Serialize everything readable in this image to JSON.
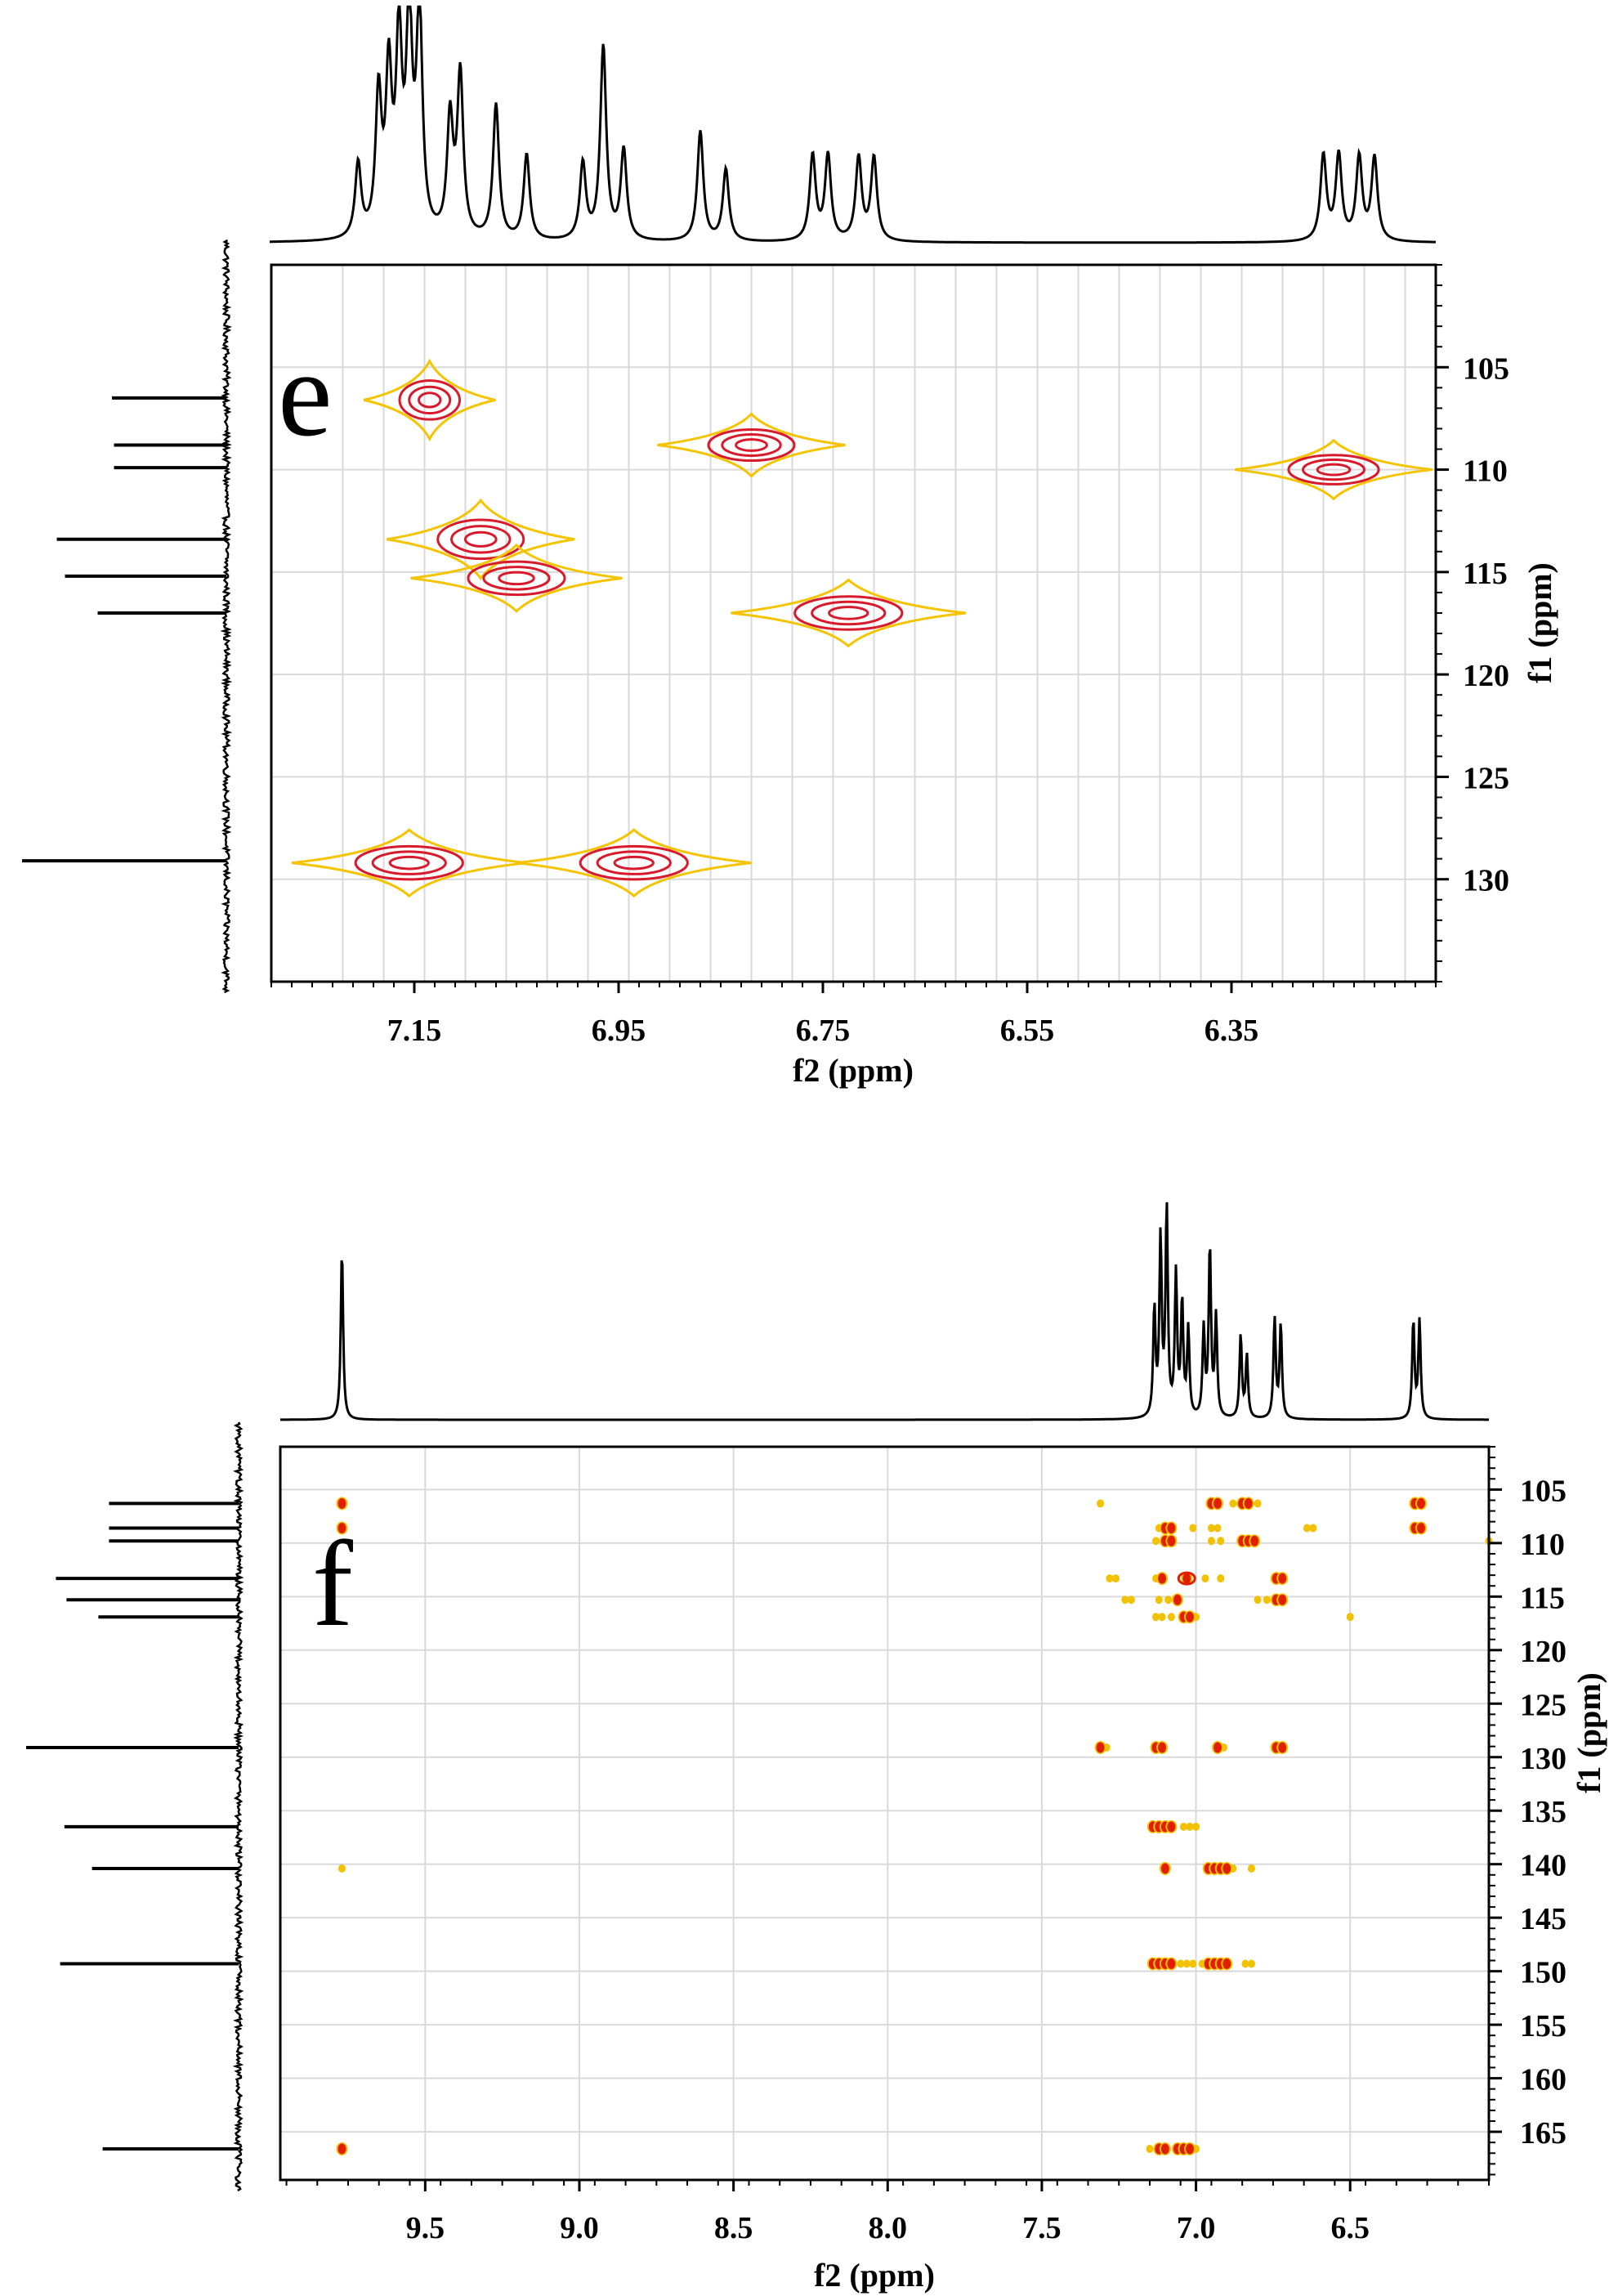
{
  "chart_data": [
    {
      "panel": "e",
      "type": "heatmap",
      "title": "e",
      "xlabel": "f2 (ppm)",
      "ylabel": "f1 (ppm)",
      "xlim": [
        7.29,
        6.15
      ],
      "ylim": [
        100,
        135
      ],
      "x_ticks": [
        7.15,
        6.95,
        6.75,
        6.55,
        6.35
      ],
      "x_tick_labels": [
        "7.15",
        "6.95",
        "6.75",
        "6.55",
        "6.35"
      ],
      "y_ticks": [
        105,
        110,
        115,
        120,
        125,
        130
      ],
      "y_tick_labels": [
        "105",
        "110",
        "115",
        "120",
        "125",
        "130"
      ],
      "x_grid": [
        7.22,
        7.18,
        7.14,
        7.1,
        7.06,
        7.02,
        6.98,
        6.94,
        6.9,
        6.86,
        6.82,
        6.78,
        6.74,
        6.7,
        6.66,
        6.62,
        6.58,
        6.54,
        6.5,
        6.46,
        6.42,
        6.38,
        6.34,
        6.3,
        6.26,
        6.22,
        6.18
      ],
      "y_grid": [
        105,
        110,
        115,
        120,
        125,
        130
      ],
      "grid": true,
      "cross_peaks": [
        {
          "x": 7.135,
          "y": 106.6,
          "w": 0.028,
          "h": 1.0,
          "levels": 3
        },
        {
          "x": 6.82,
          "y": 108.8,
          "w": 0.04,
          "h": 0.8,
          "levels": 3
        },
        {
          "x": 6.25,
          "y": 110.0,
          "w": 0.042,
          "h": 0.75,
          "levels": 3
        },
        {
          "x": 7.085,
          "y": 113.4,
          "w": 0.04,
          "h": 1.0,
          "levels": 3
        },
        {
          "x": 7.05,
          "y": 115.3,
          "w": 0.045,
          "h": 0.85,
          "levels": 3
        },
        {
          "x": 6.725,
          "y": 117.0,
          "w": 0.05,
          "h": 0.85,
          "levels": 3
        },
        {
          "x": 7.155,
          "y": 129.2,
          "w": 0.05,
          "h": 0.85,
          "levels": 3
        },
        {
          "x": 6.935,
          "y": 129.2,
          "w": 0.05,
          "h": 0.85,
          "levels": 3
        }
      ],
      "h1_peaks": [
        {
          "x": 7.205,
          "h": 0.33
        },
        {
          "x": 7.185,
          "h": 0.62
        },
        {
          "x": 7.175,
          "h": 0.7
        },
        {
          "x": 7.165,
          "h": 0.85
        },
        {
          "x": 7.155,
          "h": 0.95
        },
        {
          "x": 7.145,
          "h": 1.0
        },
        {
          "x": 7.115,
          "h": 0.52
        },
        {
          "x": 7.105,
          "h": 0.72
        },
        {
          "x": 7.07,
          "h": 0.6
        },
        {
          "x": 7.04,
          "h": 0.38
        },
        {
          "x": 6.985,
          "h": 0.34
        },
        {
          "x": 6.965,
          "h": 0.86
        },
        {
          "x": 6.945,
          "h": 0.4
        },
        {
          "x": 6.87,
          "h": 0.49
        },
        {
          "x": 6.845,
          "h": 0.32
        },
        {
          "x": 6.76,
          "h": 0.38
        },
        {
          "x": 6.745,
          "h": 0.38
        },
        {
          "x": 6.715,
          "h": 0.37
        },
        {
          "x": 6.7,
          "h": 0.37
        },
        {
          "x": 6.26,
          "h": 0.38
        },
        {
          "x": 6.245,
          "h": 0.38
        },
        {
          "x": 6.225,
          "h": 0.37
        },
        {
          "x": 6.21,
          "h": 0.37
        }
      ],
      "c13_peaks": [
        {
          "y": 106.5,
          "h": 0.56
        },
        {
          "y": 108.8,
          "h": 0.55
        },
        {
          "y": 109.9,
          "h": 0.55
        },
        {
          "y": 113.4,
          "h": 0.83
        },
        {
          "y": 115.2,
          "h": 0.79
        },
        {
          "y": 117.0,
          "h": 0.63
        },
        {
          "y": 129.1,
          "h": 1.0
        }
      ]
    },
    {
      "panel": "f",
      "type": "heatmap",
      "title": "f",
      "xlabel": "f2 (ppm)",
      "ylabel": "f1 (ppm)",
      "xlim": [
        9.97,
        6.05
      ],
      "ylim": [
        101,
        169.5
      ],
      "x_ticks": [
        9.5,
        9.0,
        8.5,
        8.0,
        7.5,
        7.0,
        6.5
      ],
      "x_tick_labels": [
        "9.5",
        "9.0",
        "8.5",
        "8.0",
        "7.5",
        "7.0",
        "6.5"
      ],
      "y_ticks": [
        105,
        110,
        115,
        120,
        125,
        130,
        135,
        140,
        145,
        150,
        155,
        160,
        165
      ],
      "y_tick_labels": [
        "105",
        "110",
        "115",
        "120",
        "125",
        "130",
        "135",
        "140",
        "145",
        "150",
        "155",
        "160",
        "165"
      ],
      "x_grid": [
        9.5,
        9.0,
        8.5,
        8.0,
        7.5,
        7.0,
        6.5
      ],
      "y_grid": [
        105,
        110,
        115,
        120,
        125,
        130,
        135,
        140,
        145,
        150,
        155,
        160,
        165
      ],
      "grid": true,
      "red_spots": [
        [
          9.77,
          106.3
        ],
        [
          9.77,
          108.6
        ],
        [
          9.77,
          166.6
        ],
        [
          6.95,
          106.3
        ],
        [
          6.93,
          106.3
        ],
        [
          6.85,
          106.3
        ],
        [
          6.83,
          106.3
        ],
        [
          6.29,
          106.3
        ],
        [
          6.27,
          106.3
        ],
        [
          7.1,
          108.6
        ],
        [
          7.08,
          108.6
        ],
        [
          6.29,
          108.6
        ],
        [
          6.27,
          108.6
        ],
        [
          7.1,
          109.8
        ],
        [
          7.08,
          109.8
        ],
        [
          6.85,
          109.8
        ],
        [
          6.83,
          109.8
        ],
        [
          6.81,
          109.8
        ],
        [
          7.11,
          113.3
        ],
        [
          7.03,
          113.3
        ],
        [
          6.74,
          113.3
        ],
        [
          6.72,
          113.3
        ],
        [
          7.06,
          115.3
        ],
        [
          6.74,
          115.3
        ],
        [
          6.72,
          115.3
        ],
        [
          7.04,
          116.9
        ],
        [
          7.02,
          116.9
        ],
        [
          7.31,
          129.1
        ],
        [
          7.13,
          129.1
        ],
        [
          7.11,
          129.1
        ],
        [
          6.93,
          129.1
        ],
        [
          6.74,
          129.1
        ],
        [
          6.72,
          129.1
        ],
        [
          7.14,
          136.5
        ],
        [
          7.12,
          136.5
        ],
        [
          7.1,
          136.5
        ],
        [
          7.08,
          136.5
        ],
        [
          7.1,
          140.4
        ],
        [
          6.96,
          140.4
        ],
        [
          6.94,
          140.4
        ],
        [
          6.92,
          140.4
        ],
        [
          6.9,
          140.4
        ],
        [
          7.14,
          149.3
        ],
        [
          7.12,
          149.3
        ],
        [
          7.1,
          149.3
        ],
        [
          7.08,
          149.3
        ],
        [
          6.96,
          149.3
        ],
        [
          6.94,
          149.3
        ],
        [
          6.92,
          149.3
        ],
        [
          6.9,
          149.3
        ],
        [
          7.12,
          166.6
        ],
        [
          7.1,
          166.6
        ],
        [
          7.06,
          166.6
        ],
        [
          7.04,
          166.6
        ],
        [
          7.02,
          166.6
        ]
      ],
      "yellow_spots": [
        [
          7.31,
          106.3
        ],
        [
          6.88,
          106.3
        ],
        [
          6.8,
          106.3
        ],
        [
          7.12,
          108.6
        ],
        [
          7.01,
          108.6
        ],
        [
          6.95,
          108.6
        ],
        [
          6.93,
          108.6
        ],
        [
          6.64,
          108.6
        ],
        [
          6.62,
          108.6
        ],
        [
          6.05,
          109.8
        ],
        [
          7.13,
          109.8
        ],
        [
          6.95,
          109.8
        ],
        [
          6.92,
          109.8
        ],
        [
          7.28,
          113.3
        ],
        [
          7.26,
          113.3
        ],
        [
          7.13,
          113.3
        ],
        [
          6.97,
          113.3
        ],
        [
          6.92,
          113.3
        ],
        [
          7.23,
          115.3
        ],
        [
          7.21,
          115.3
        ],
        [
          7.12,
          115.3
        ],
        [
          7.09,
          115.3
        ],
        [
          6.8,
          115.3
        ],
        [
          6.77,
          115.3
        ],
        [
          7.13,
          116.9
        ],
        [
          7.11,
          116.9
        ],
        [
          7.08,
          116.9
        ],
        [
          7.0,
          116.9
        ],
        [
          6.5,
          116.9
        ],
        [
          7.29,
          129.1
        ],
        [
          6.91,
          129.1
        ],
        [
          7.04,
          136.5
        ],
        [
          7.02,
          136.5
        ],
        [
          7.0,
          136.5
        ],
        [
          9.77,
          140.4
        ],
        [
          6.88,
          140.4
        ],
        [
          6.82,
          140.4
        ],
        [
          7.05,
          149.3
        ],
        [
          7.03,
          149.3
        ],
        [
          7.01,
          149.3
        ],
        [
          6.98,
          149.3
        ],
        [
          6.84,
          149.3
        ],
        [
          6.82,
          149.3
        ],
        [
          7.15,
          166.6
        ],
        [
          7.0,
          166.6
        ]
      ],
      "red_rings": [
        [
          7.03,
          113.3
        ]
      ],
      "h1_peaks": [
        {
          "x": 9.77,
          "h": 0.82
        },
        {
          "x": 7.135,
          "h": 0.52
        },
        {
          "x": 7.115,
          "h": 0.85
        },
        {
          "x": 7.095,
          "h": 1.0
        },
        {
          "x": 7.065,
          "h": 0.68
        },
        {
          "x": 7.045,
          "h": 0.55
        },
        {
          "x": 7.025,
          "h": 0.42
        },
        {
          "x": 6.975,
          "h": 0.42
        },
        {
          "x": 6.955,
          "h": 0.82
        },
        {
          "x": 6.935,
          "h": 0.48
        },
        {
          "x": 6.855,
          "h": 0.4
        },
        {
          "x": 6.835,
          "h": 0.3
        },
        {
          "x": 6.745,
          "h": 0.48
        },
        {
          "x": 6.725,
          "h": 0.45
        },
        {
          "x": 6.295,
          "h": 0.47
        },
        {
          "x": 6.275,
          "h": 0.47
        }
      ],
      "c13_peaks": [
        {
          "y": 106.3,
          "h": 0.61
        },
        {
          "y": 108.6,
          "h": 0.61
        },
        {
          "y": 109.8,
          "h": 0.61
        },
        {
          "y": 113.3,
          "h": 0.86
        },
        {
          "y": 115.3,
          "h": 0.81
        },
        {
          "y": 116.9,
          "h": 0.66
        },
        {
          "y": 129.1,
          "h": 1.0
        },
        {
          "y": 136.5,
          "h": 0.82
        },
        {
          "y": 140.4,
          "h": 0.69
        },
        {
          "y": 149.3,
          "h": 0.84
        },
        {
          "y": 166.6,
          "h": 0.64
        }
      ]
    }
  ],
  "colors": {
    "outer_contour": "#f5c400",
    "inner_contour": "#d81b2c",
    "red_spot": "#e01e00",
    "yellow_spot": "#f2c200",
    "grid": "#d9d9d9",
    "axis": "#000000"
  }
}
